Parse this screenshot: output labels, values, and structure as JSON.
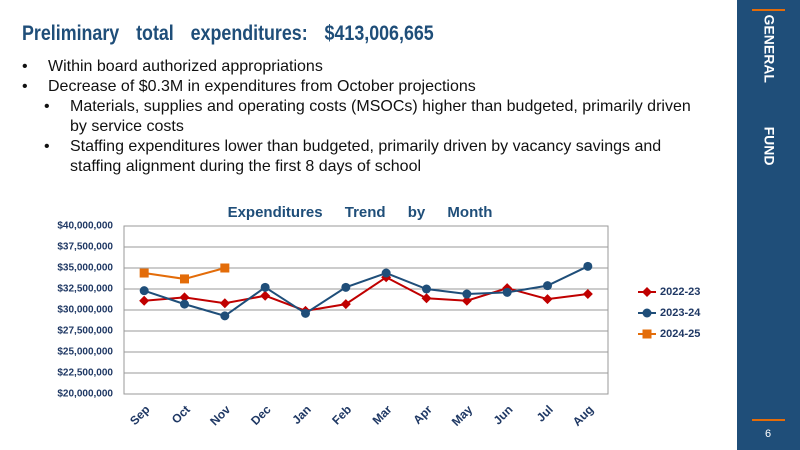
{
  "slide": {
    "title": "Preliminary total expenditures: $413,006,665",
    "bullets": [
      {
        "text": "Within board authorized appropriations",
        "sub": []
      },
      {
        "text": "Decrease of $0.3M in expenditures from October projections",
        "sub": [
          "Materials, supplies and operating costs (MSOCs) higher than budgeted, primarily driven by service costs",
          "Staffing expenditures lower than budgeted, primarily driven by vacancy savings and staffing alignment during the first 8 days of school"
        ]
      }
    ],
    "sidebar": "GENERAL FUND",
    "page_number": "6"
  },
  "chart_data": {
    "type": "line",
    "title": "Expenditures Trend by Month",
    "categories": [
      "Sep",
      "Oct",
      "Nov",
      "Dec",
      "Jan",
      "Feb",
      "Mar",
      "Apr",
      "May",
      "Jun",
      "Jul",
      "Aug"
    ],
    "series": [
      {
        "name": "2022-23",
        "color": "#c00000",
        "marker": "diamond",
        "values": [
          31100000,
          31500000,
          30800000,
          31700000,
          29900000,
          30700000,
          33900000,
          31400000,
          31100000,
          32600000,
          31300000,
          31900000
        ]
      },
      {
        "name": "2023-24",
        "color": "#1f4e79",
        "marker": "circle",
        "values": [
          32300000,
          30700000,
          29300000,
          32700000,
          29600000,
          32700000,
          34400000,
          32500000,
          31900000,
          32100000,
          32900000,
          35200000
        ]
      },
      {
        "name": "2024-25",
        "color": "#e36c09",
        "marker": "square",
        "values": [
          34400000,
          33700000,
          35000000,
          null,
          null,
          null,
          null,
          null,
          null,
          null,
          null,
          null
        ]
      }
    ],
    "ylim": [
      20000000,
      40000000
    ],
    "yticks": [
      {
        "value": 20000000,
        "label": "$20,000,000"
      },
      {
        "value": 22500000,
        "label": "$22,500,000"
      },
      {
        "value": 25000000,
        "label": "$25,000,000"
      },
      {
        "value": 27500000,
        "label": "$27,500,000"
      },
      {
        "value": 30000000,
        "label": "$30,000,000"
      },
      {
        "value": 32500000,
        "label": "$32,500,000"
      },
      {
        "value": 35000000,
        "label": "$35,000,000"
      },
      {
        "value": 37500000,
        "label": "$37,500,000"
      },
      {
        "value": 40000000,
        "label": "$40,000,000"
      }
    ],
    "grid": true,
    "legend": "right"
  }
}
